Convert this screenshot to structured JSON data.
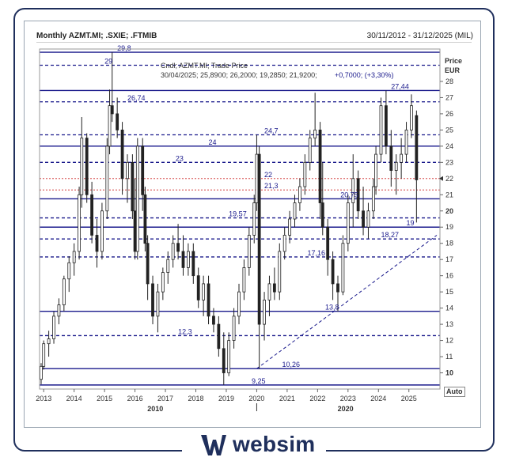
{
  "header": {
    "title": "Monthly AZMT.MI; .SXIE; .FTMIB",
    "date_range": "30/11/2012 - 31/12/2025 (MIL)"
  },
  "legend": {
    "line1": "Cndl; AZMT.MI; Trade Price",
    "line2_values": "30/04/2025; 25,8900; 26,2000; 19,2850; 21,9200;",
    "line2_change": "+0,7000; (+3,30%)"
  },
  "axis": {
    "y_title": "Price",
    "y_unit": "EUR",
    "auto_label": "Auto",
    "current_price_label": "22"
  },
  "brand": {
    "name": "websim"
  },
  "colors": {
    "candle": "#222222",
    "solid_level": "#1a1a8c",
    "dashed_level": "#1a1a8c",
    "red_level": "#cc2222",
    "label_text": "#1a1a8c",
    "frame": "#1f2f5c"
  },
  "chart_data": {
    "type": "candlestick",
    "x_ticks": [
      "2013",
      "2014",
      "2015",
      "2016",
      "2017",
      "2018",
      "2019",
      "2020",
      "2021",
      "2022",
      "2023",
      "2024",
      "2025"
    ],
    "x_secondary": [
      "2010",
      "2020"
    ],
    "y_ticks": [
      10,
      11,
      12,
      13,
      14,
      15,
      16,
      17,
      18,
      19,
      20,
      21,
      22,
      23,
      24,
      25,
      26,
      27,
      28
    ],
    "ylim": [
      9,
      30
    ],
    "levels": [
      {
        "value": 29.8,
        "label": "29,8",
        "style": "solid"
      },
      {
        "value": 29,
        "label": "29",
        "style": "dashed"
      },
      {
        "value": 27.44,
        "label": "27,44",
        "style": "solid"
      },
      {
        "value": 26.74,
        "label": "26,74",
        "style": "dashed"
      },
      {
        "value": 24.7,
        "label": "24,7",
        "style": "dashed"
      },
      {
        "value": 24,
        "label": "24",
        "style": "solid"
      },
      {
        "value": 23,
        "label": "23",
        "style": "dashed"
      },
      {
        "value": 22,
        "label": "22",
        "style": "red"
      },
      {
        "value": 21.3,
        "label": "21,3",
        "style": "red"
      },
      {
        "value": 20.75,
        "label": "20,75",
        "style": "solid"
      },
      {
        "value": 19.57,
        "label": "19,57",
        "style": "dashed"
      },
      {
        "value": 19,
        "label": "19",
        "style": "solid"
      },
      {
        "value": 18.27,
        "label": "18,27",
        "style": "dashed"
      },
      {
        "value": 17.16,
        "label": "17,16",
        "style": "dashed"
      },
      {
        "value": 13.8,
        "label": "13,8",
        "style": "solid"
      },
      {
        "value": 12.3,
        "label": "12,3",
        "style": "dashed"
      },
      {
        "value": 10.26,
        "label": "10,26",
        "style": "solid"
      },
      {
        "value": 9.25,
        "label": "9,25",
        "style": "solid"
      }
    ],
    "trendline": {
      "from": [
        "2020-01",
        10.26
      ],
      "to": [
        "2025-12",
        18.5
      ]
    },
    "candles": [
      [
        "2012-12",
        9.6,
        10.6,
        9.3,
        10.4
      ],
      [
        "2013-01",
        10.4,
        12.0,
        10.2,
        11.8
      ],
      [
        "2013-03",
        11.8,
        12.6,
        11.0,
        12.1
      ],
      [
        "2013-05",
        12.1,
        13.8,
        11.8,
        13.5
      ],
      [
        "2013-07",
        13.5,
        14.6,
        13.0,
        14.2
      ],
      [
        "2013-09",
        14.2,
        16.0,
        13.8,
        15.8
      ],
      [
        "2013-11",
        15.8,
        17.2,
        15.0,
        16.8
      ],
      [
        "2014-01",
        16.8,
        18.0,
        16.0,
        17.5
      ],
      [
        "2014-03",
        17.5,
        21.5,
        17.0,
        21.0
      ],
      [
        "2014-04",
        21.0,
        25.8,
        20.2,
        24.5
      ],
      [
        "2014-06",
        24.5,
        24.8,
        20.5,
        21.0
      ],
      [
        "2014-08",
        21.0,
        21.8,
        18.0,
        18.5
      ],
      [
        "2014-10",
        18.5,
        19.5,
        16.5,
        17.5
      ],
      [
        "2014-12",
        17.5,
        20.5,
        17.0,
        20.0
      ],
      [
        "2015-02",
        20.0,
        24.5,
        19.5,
        24.0
      ],
      [
        "2015-03",
        24.0,
        27.5,
        23.5,
        26.5
      ],
      [
        "2015-04",
        26.5,
        29.8,
        25.5,
        26.0
      ],
      [
        "2015-06",
        26.0,
        27.0,
        24.5,
        25.0
      ],
      [
        "2015-08",
        25.0,
        25.5,
        21.0,
        22.0
      ],
      [
        "2015-10",
        22.0,
        23.5,
        20.5,
        23.0
      ],
      [
        "2015-12",
        23.0,
        23.5,
        19.5,
        20.0
      ],
      [
        "2016-01",
        20.0,
        22.0,
        17.0,
        17.5
      ],
      [
        "2016-02",
        17.5,
        24.5,
        17.0,
        24.0
      ],
      [
        "2016-04",
        24.0,
        24.5,
        20.0,
        21.0
      ],
      [
        "2016-05",
        21.0,
        21.5,
        17.5,
        18.0
      ],
      [
        "2016-06",
        18.0,
        18.5,
        14.5,
        15.5
      ],
      [
        "2016-08",
        15.5,
        16.0,
        13.0,
        13.5
      ],
      [
        "2016-10",
        13.5,
        15.5,
        12.5,
        15.0
      ],
      [
        "2016-12",
        15.0,
        16.5,
        14.5,
        16.2
      ],
      [
        "2017-02",
        16.2,
        17.5,
        15.5,
        17.0
      ],
      [
        "2017-04",
        17.0,
        18.5,
        16.5,
        18.0
      ],
      [
        "2017-06",
        18.0,
        19.2,
        17.0,
        17.5
      ],
      [
        "2017-08",
        17.5,
        18.5,
        16.0,
        16.5
      ],
      [
        "2017-10",
        16.5,
        18.0,
        16.0,
        17.5
      ],
      [
        "2017-12",
        17.5,
        18.0,
        15.5,
        16.0
      ],
      [
        "2018-02",
        16.0,
        16.5,
        14.0,
        14.5
      ],
      [
        "2018-04",
        14.5,
        16.0,
        13.5,
        15.5
      ],
      [
        "2018-06",
        15.5,
        16.0,
        13.0,
        13.5
      ],
      [
        "2018-08",
        13.5,
        14.0,
        12.5,
        13.0
      ],
      [
        "2018-10",
        13.0,
        13.5,
        11.0,
        11.5
      ],
      [
        "2018-12",
        11.5,
        12.5,
        9.25,
        10.0
      ],
      [
        "2019-02",
        10.0,
        12.5,
        9.8,
        12.0
      ],
      [
        "2019-04",
        12.0,
        14.0,
        11.5,
        13.5
      ],
      [
        "2019-06",
        13.5,
        15.5,
        13.0,
        15.0
      ],
      [
        "2019-08",
        15.0,
        17.0,
        14.5,
        16.5
      ],
      [
        "2019-10",
        16.5,
        19.0,
        16.0,
        18.5
      ],
      [
        "2019-12",
        18.5,
        21.0,
        18.0,
        20.5
      ],
      [
        "2020-01",
        20.5,
        24.7,
        20.0,
        23.5
      ],
      [
        "2020-02",
        23.5,
        24.0,
        10.26,
        13.0
      ],
      [
        "2020-04",
        13.0,
        15.0,
        12.0,
        14.5
      ],
      [
        "2020-06",
        14.5,
        16.0,
        13.5,
        15.5
      ],
      [
        "2020-08",
        15.5,
        16.5,
        14.5,
        15.0
      ],
      [
        "2020-10",
        15.0,
        18.0,
        14.5,
        17.5
      ],
      [
        "2020-12",
        17.5,
        19.0,
        17.0,
        18.5
      ],
      [
        "2021-02",
        18.5,
        20.0,
        18.0,
        19.5
      ],
      [
        "2021-04",
        19.5,
        21.0,
        19.0,
        20.5
      ],
      [
        "2021-06",
        20.5,
        22.0,
        20.0,
        21.5
      ],
      [
        "2021-08",
        21.5,
        23.5,
        21.0,
        23.0
      ],
      [
        "2021-10",
        23.0,
        25.0,
        22.5,
        24.5
      ],
      [
        "2021-12",
        24.5,
        27.3,
        24.0,
        25.0
      ],
      [
        "2022-02",
        25.0,
        25.5,
        19.5,
        20.5
      ],
      [
        "2022-03",
        20.5,
        23.0,
        18.5,
        19.0
      ],
      [
        "2022-05",
        19.0,
        19.5,
        16.0,
        17.0
      ],
      [
        "2022-07",
        17.0,
        17.5,
        14.5,
        15.5
      ],
      [
        "2022-09",
        15.5,
        16.0,
        13.8,
        15.0
      ],
      [
        "2022-11",
        15.0,
        18.5,
        14.8,
        18.0
      ],
      [
        "2023-01",
        18.0,
        21.0,
        17.5,
        20.5
      ],
      [
        "2023-03",
        20.5,
        23.5,
        19.0,
        22.0
      ],
      [
        "2023-05",
        22.0,
        22.5,
        19.5,
        20.0
      ],
      [
        "2023-07",
        20.0,
        21.5,
        18.5,
        19.0
      ],
      [
        "2023-09",
        19.0,
        20.5,
        18.3,
        20.0
      ],
      [
        "2023-11",
        20.0,
        22.0,
        19.5,
        21.5
      ],
      [
        "2023-12",
        21.5,
        24.0,
        21.0,
        23.5
      ],
      [
        "2024-02",
        23.5,
        27.0,
        23.0,
        26.5
      ],
      [
        "2024-04",
        26.5,
        27.44,
        23.5,
        24.0
      ],
      [
        "2024-06",
        24.0,
        25.0,
        21.5,
        22.5
      ],
      [
        "2024-08",
        22.5,
        23.5,
        21.0,
        23.0
      ],
      [
        "2024-10",
        23.0,
        24.5,
        22.0,
        23.5
      ],
      [
        "2024-12",
        23.5,
        25.5,
        23.0,
        25.0
      ],
      [
        "2025-02",
        25.0,
        27.2,
        24.5,
        26.5
      ],
      [
        "2025-04",
        25.89,
        26.2,
        19.285,
        21.92
      ]
    ]
  }
}
